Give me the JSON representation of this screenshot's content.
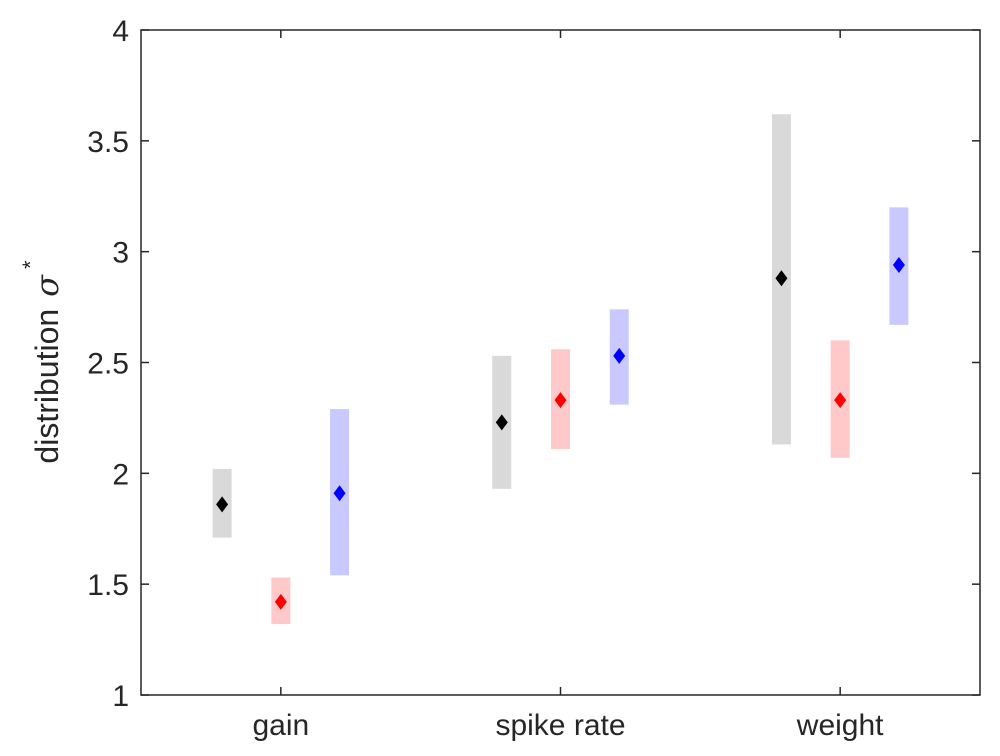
{
  "chart_data": {
    "type": "scatter",
    "title": "",
    "xlabel": "",
    "ylabel": "distribution",
    "ylabel_symbol": "σ",
    "ylabel_superscript": "*",
    "categories": [
      "gain",
      "spike rate",
      "weight"
    ],
    "ylim": [
      1,
      4
    ],
    "yticks": [
      1,
      1.5,
      2,
      2.5,
      3,
      3.5,
      4
    ],
    "ytick_labels": [
      "1",
      "1.5",
      "2",
      "2.5",
      "3",
      "3.5",
      "4"
    ],
    "grid": false,
    "legend": "none",
    "series": [
      {
        "color": "#000000",
        "band_color": "#d9d9d9",
        "offset": -0.42,
        "values": [
          1.86,
          2.23,
          2.88
        ],
        "low": [
          1.71,
          1.93,
          2.13
        ],
        "high": [
          2.02,
          2.53,
          3.62
        ]
      },
      {
        "color": "#ff0000",
        "band_color": "#ffc9c9",
        "offset": 0.0,
        "values": [
          1.42,
          2.33,
          2.33
        ],
        "low": [
          1.32,
          2.11,
          2.07
        ],
        "high": [
          1.53,
          2.56,
          2.6
        ]
      },
      {
        "color": "#0000ff",
        "band_color": "#c9c9ff",
        "offset": 0.42,
        "values": [
          1.91,
          2.53,
          2.94
        ],
        "low": [
          1.54,
          2.31,
          2.67
        ],
        "high": [
          2.29,
          2.74,
          3.2
        ]
      }
    ]
  }
}
